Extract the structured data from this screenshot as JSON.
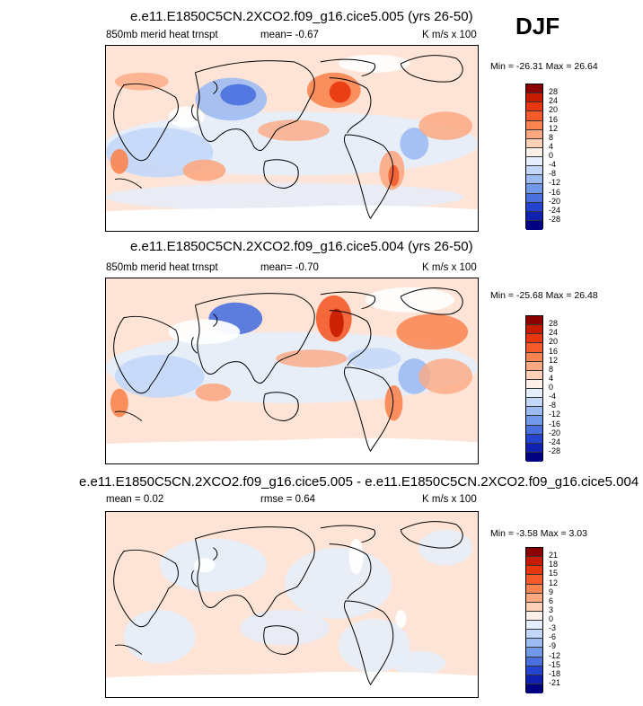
{
  "season": "DJF",
  "panels": [
    {
      "title": "e.e11.E1850C5CN.2XCO2.f09_g16.cice5.005 (yrs 26-50)",
      "left_label": "850mb merid heat trnspt",
      "center_label": "mean=  -0.67",
      "right_label": "K m/s x 100",
      "minmax": "Min = -26.31 Max =  26.64",
      "colorbar_levels": [
        "28",
        "24",
        "20",
        "16",
        "12",
        "8",
        "4",
        "0",
        "-4",
        "-8",
        "-12",
        "-16",
        "-20",
        "-24",
        "-28"
      ]
    },
    {
      "title": "e.e11.E1850C5CN.2XCO2.f09_g16.cice5.004 (yrs 26-50)",
      "left_label": "850mb merid heat trnspt",
      "center_label": "mean=  -0.70",
      "right_label": "K m/s x 100",
      "minmax": "Min = -25.68 Max =  26.48",
      "colorbar_levels": [
        "28",
        "24",
        "20",
        "16",
        "12",
        "8",
        "4",
        "0",
        "-4",
        "-8",
        "-12",
        "-16",
        "-20",
        "-24",
        "-28"
      ]
    },
    {
      "title": "e.e11.E1850C5CN.2XCO2.f09_g16.cice5.005 - e.e11.E1850C5CN.2XCO2.f09_g16.cice5.004",
      "left_label": "mean =  0.02",
      "center_label": "rmse =  0.64",
      "right_label": "K m/s x 100",
      "minmax": "Min =  -3.58 Max =  3.03",
      "colorbar_levels": [
        "21",
        "18",
        "15",
        "12",
        "9",
        "6",
        "3",
        "0",
        "-3",
        "-6",
        "-9",
        "-12",
        "-15",
        "-18",
        "-21"
      ]
    }
  ],
  "colorbar_colors": [
    "#8b0000",
    "#c61b00",
    "#e8360d",
    "#f45a2a",
    "#f98450",
    "#fca982",
    "#fdd0b8",
    "#fdf0e8",
    "#e4eefc",
    "#c3d7f8",
    "#9dbbf3",
    "#7298ea",
    "#4a70df",
    "#2443cf",
    "#1020b0",
    "#000080"
  ],
  "chart_data": [
    {
      "type": "heatmap",
      "title": "e.e11.E1850C5CN.2XCO2.f09_g16.cice5.005 (yrs 26-50)",
      "variable": "850mb merid heat trnspt",
      "units": "K m/s x 100",
      "season": "DJF",
      "mean": -0.67,
      "min": -26.31,
      "max": 26.64,
      "contour_levels": [
        -28,
        -24,
        -20,
        -16,
        -12,
        -8,
        -4,
        0,
        4,
        8,
        12,
        16,
        20,
        24,
        28
      ]
    },
    {
      "type": "heatmap",
      "title": "e.e11.E1850C5CN.2XCO2.f09_g16.cice5.004 (yrs 26-50)",
      "variable": "850mb merid heat trnspt",
      "units": "K m/s x 100",
      "season": "DJF",
      "mean": -0.7,
      "min": -25.68,
      "max": 26.48,
      "contour_levels": [
        -28,
        -24,
        -20,
        -16,
        -12,
        -8,
        -4,
        0,
        4,
        8,
        12,
        16,
        20,
        24,
        28
      ]
    },
    {
      "type": "heatmap",
      "title": "e.e11.E1850C5CN.2XCO2.f09_g16.cice5.005 - e.e11.E1850C5CN.2XCO2.f09_g16.cice5.004",
      "units": "K m/s x 100",
      "season": "DJF",
      "mean": 0.02,
      "rmse": 0.64,
      "min": -3.58,
      "max": 3.03,
      "contour_levels": [
        -21,
        -18,
        -15,
        -12,
        -9,
        -6,
        -3,
        0,
        3,
        6,
        9,
        12,
        15,
        18,
        21
      ]
    }
  ]
}
